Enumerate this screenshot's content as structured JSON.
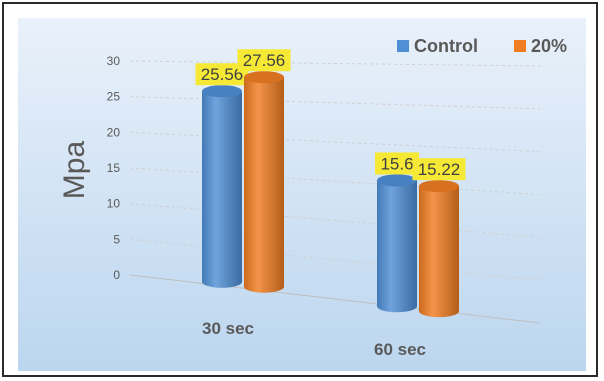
{
  "chart_data": {
    "type": "bar",
    "style": "3d-cylinder",
    "categories": [
      "30 sec",
      "60  sec"
    ],
    "series": [
      {
        "name": "Control",
        "values": [
          25.56,
          15.6
        ],
        "color": "#4f8fd6",
        "labels": [
          "25.56",
          "15.6"
        ]
      },
      {
        "name": "20%",
        "values": [
          27.56,
          15.22
        ],
        "color": "#f07d22",
        "labels": [
          "27.56",
          "15.22"
        ]
      }
    ],
    "ylabel": "Mpa",
    "ylim": [
      0,
      30
    ],
    "yticks": [
      "0",
      "5",
      "10",
      "15",
      "20",
      "25",
      "30"
    ],
    "grid": true,
    "legend_position": "top-right",
    "label_background": "#f5e936",
    "background_gradient": [
      "#bcd6ef",
      "#e9f1fa"
    ]
  }
}
